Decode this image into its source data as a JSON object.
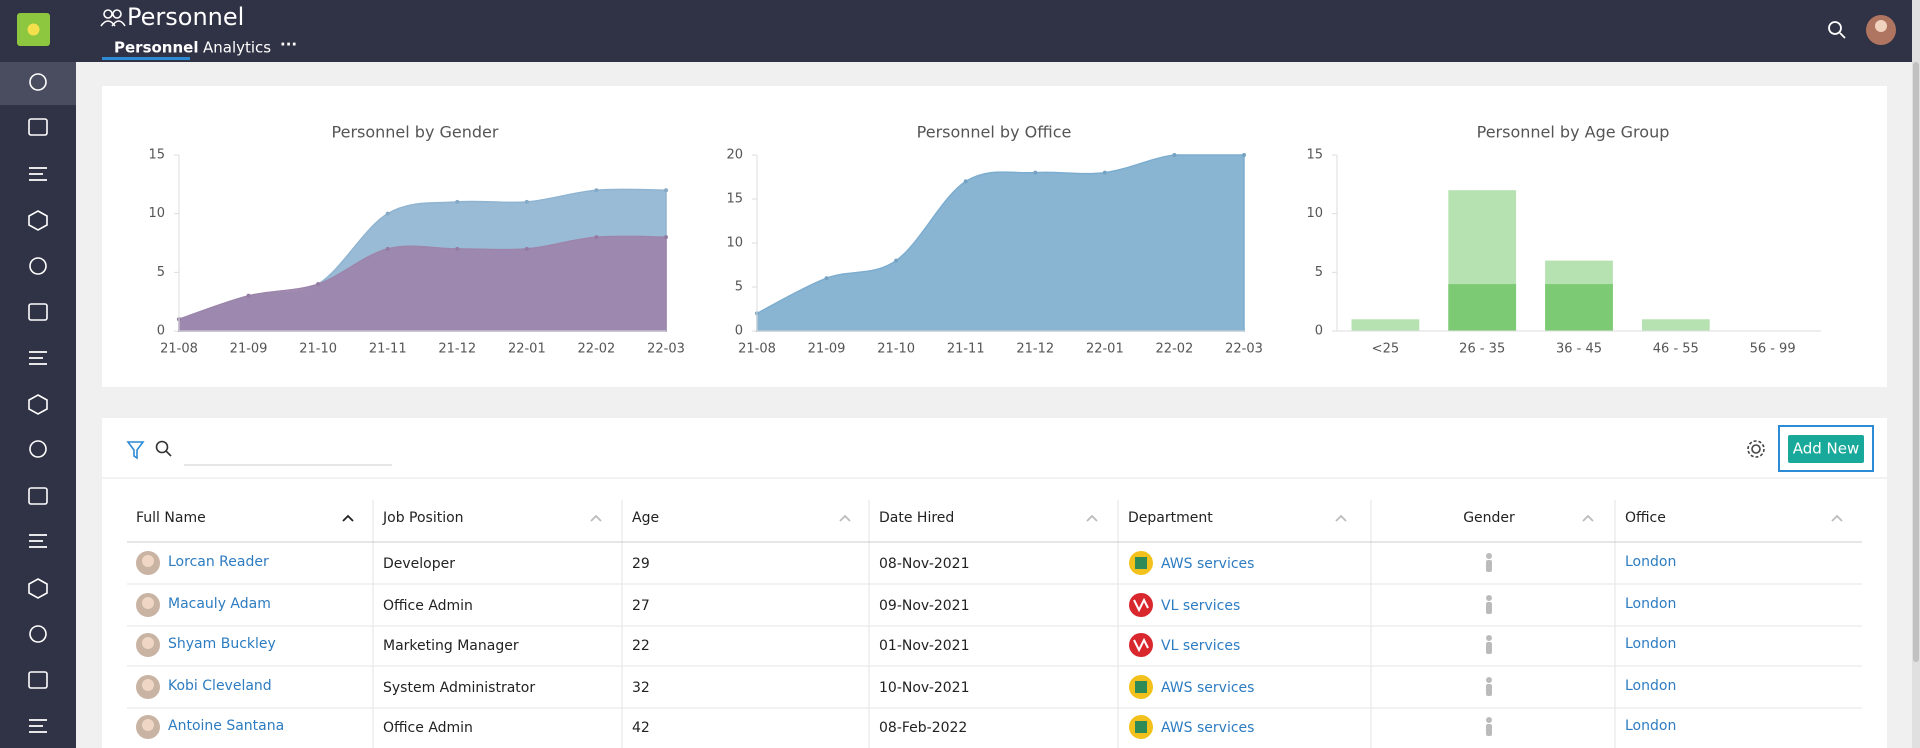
{
  "header": {
    "title": "Personnel",
    "tabs": [
      "Personnel",
      "Analytics",
      "···"
    ]
  },
  "chart_data": [
    {
      "type": "area",
      "title": "Personnel by Gender",
      "categories": [
        "21-08",
        "21-09",
        "21-10",
        "21-11",
        "21-12",
        "22-01",
        "22-02",
        "22-03"
      ],
      "series": [
        {
          "color": "#a8d4f6",
          "values": [
            1,
            3,
            4,
            10,
            11,
            11,
            12,
            12
          ]
        },
        {
          "color": "#b99bc9",
          "values": [
            1,
            3,
            4,
            7,
            7,
            7,
            8,
            8
          ]
        }
      ],
      "ylim": [
        0,
        15
      ],
      "yticks": [
        0,
        5,
        10,
        15
      ]
    },
    {
      "type": "area",
      "title": "Personnel by Office",
      "categories": [
        "21-08",
        "21-09",
        "21-10",
        "21-11",
        "21-12",
        "22-01",
        "22-02",
        "22-03"
      ],
      "series": [
        {
          "color": "#92cbf3",
          "values": [
            2,
            6,
            8,
            17,
            18,
            18,
            20,
            20
          ]
        }
      ],
      "ylim": [
        0,
        20
      ],
      "yticks": [
        0,
        5,
        10,
        15,
        20
      ]
    },
    {
      "type": "bar",
      "title": "Personnel by Age Group",
      "categories": [
        "<25",
        "26 - 35",
        "36 - 45",
        "46 - 55",
        "56 - 99"
      ],
      "series": [
        {
          "color": "#b6e2b1",
          "values": [
            1,
            12,
            6,
            1,
            0
          ]
        },
        {
          "color": "#7ccb74",
          "values": [
            0,
            4,
            4,
            0,
            0
          ]
        }
      ],
      "ylim": [
        0,
        15
      ],
      "yticks": [
        0,
        5,
        10,
        15
      ]
    }
  ],
  "toolbar": {
    "button": "Add New"
  },
  "table": {
    "columns": [
      "Full Name",
      "Job Position",
      "Age",
      "Date Hired",
      "Department",
      "Gender",
      "Office"
    ],
    "rows": [
      {
        "name": "Lorcan Reader",
        "position": "Developer",
        "age": 29,
        "date_hired": "08-Nov-2021",
        "department": "AWS services",
        "office": "London"
      },
      {
        "name": "Macauly Adam",
        "position": "Office Admin",
        "age": 27,
        "date_hired": "09-Nov-2021",
        "department": "VL services",
        "office": "London"
      },
      {
        "name": "Shyam Buckley",
        "position": "Marketing Manager",
        "age": 22,
        "date_hired": "01-Nov-2021",
        "department": "VL services",
        "office": "London"
      },
      {
        "name": "Kobi Cleveland",
        "position": "System Administrator",
        "age": 32,
        "date_hired": "10-Nov-2021",
        "department": "AWS services",
        "office": "London"
      },
      {
        "name": "Antoine Santana",
        "position": "Office Admin",
        "age": 42,
        "date_hired": "08-Feb-2022",
        "department": "AWS services",
        "office": "London"
      }
    ]
  }
}
